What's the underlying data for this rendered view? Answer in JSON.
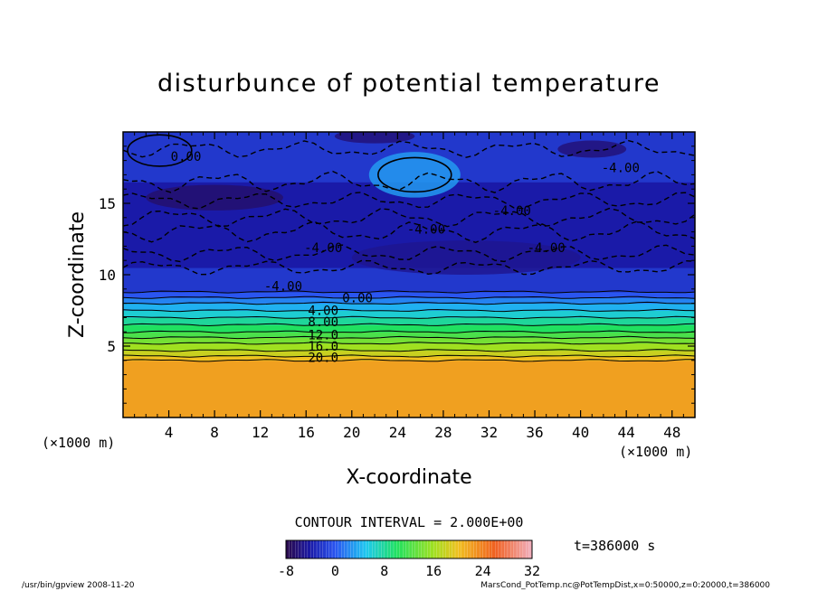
{
  "chart_data": {
    "type": "heatmap",
    "title": "disturbunce of potential temperature",
    "xlabel": "X-coordinate",
    "ylabel": "Z-coordinate",
    "x_unit_left": "(×1000 m)",
    "x_unit_right": "(×1000 m)",
    "xlim": [
      0,
      50
    ],
    "ylim": [
      0,
      20
    ],
    "x_ticks": [
      "4",
      "8",
      "12",
      "16",
      "20",
      "24",
      "28",
      "32",
      "36",
      "40",
      "44",
      "48"
    ],
    "y_ticks": [
      "5",
      "10",
      "15"
    ],
    "contour_interval_label": "CONTOUR INTERVAL = 2.000E+00",
    "time_label": "t=386000 s",
    "colorbar": {
      "min": -8,
      "max": 32,
      "ticks": [
        "-8",
        "0",
        "8",
        "16",
        "24",
        "32"
      ]
    },
    "contour_labels": [
      "0.00",
      "-4.00",
      "-4.00",
      "-4.00",
      "-4.00",
      "-4.00",
      "-4.00",
      "0.00",
      "4.00",
      "8.00",
      "12.0",
      "16.0",
      "20.0"
    ],
    "layers": [
      {
        "z_bottom": 0,
        "z_top": 4,
        "value": 22
      },
      {
        "z_bottom": 4,
        "z_top": 4.3,
        "value": 20
      },
      {
        "z_bottom": 4.3,
        "z_top": 4.7,
        "value": 18
      },
      {
        "z_bottom": 4.7,
        "z_top": 5.2,
        "value": 16
      },
      {
        "z_bottom": 5.2,
        "z_top": 5.6,
        "value": 14
      },
      {
        "z_bottom": 5.6,
        "z_top": 6.0,
        "value": 12
      },
      {
        "z_bottom": 6.0,
        "z_top": 6.5,
        "value": 10
      },
      {
        "z_bottom": 6.5,
        "z_top": 7.0,
        "value": 8
      },
      {
        "z_bottom": 7.0,
        "z_top": 7.5,
        "value": 6
      },
      {
        "z_bottom": 7.5,
        "z_top": 8.0,
        "value": 4
      },
      {
        "z_bottom": 8.0,
        "z_top": 8.4,
        "value": 2
      },
      {
        "z_bottom": 8.4,
        "z_top": 8.8,
        "value": 0
      },
      {
        "z_bottom": 8.8,
        "z_top": 10.5,
        "value": -2
      },
      {
        "z_bottom": 10.5,
        "z_top": 13.5,
        "value": -4
      },
      {
        "z_bottom": 13.5,
        "z_top": 16.5,
        "value": -4
      },
      {
        "z_bottom": 16.5,
        "z_top": 20,
        "value": -2
      }
    ],
    "grid": false
  },
  "footer": {
    "left": "/usr/bin/gpview   2008-11-20",
    "right": "MarsCond_PotTemp.nc@PotTempDist,x=0:50000,z=0:20000,t=386000"
  }
}
